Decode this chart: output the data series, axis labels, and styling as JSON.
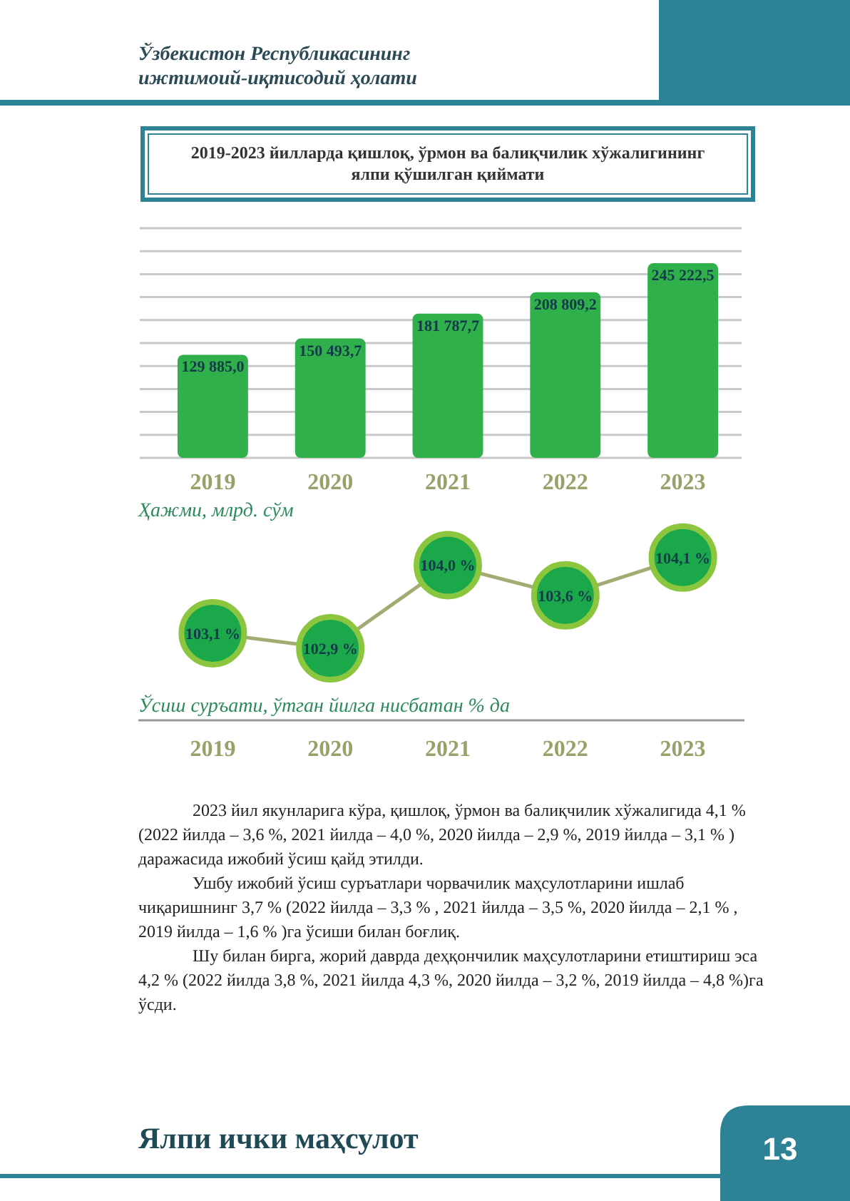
{
  "chart_data": [
    {
      "type": "bar",
      "title": "2019-2023 йилларда қишлоқ, ўрмон ва балиқчилик хўжалигининг ялпи қўшилган қиймати",
      "xlabel": "Ҳажми, млрд. сўм",
      "categories": [
        "2019",
        "2020",
        "2021",
        "2022",
        "2023"
      ],
      "values": [
        129885.0,
        150493.7,
        181787.7,
        208809.2,
        245222.5
      ],
      "value_labels": [
        "129 885,0",
        "150 493,7",
        "181 787,7",
        "208 809,2",
        "245 222,5"
      ],
      "color": "#2fb04a",
      "grid": "y",
      "annotations": [
        "Ўзбекистон Республикасининг",
        "ижтимоий-иқтисодий ҳолати"
      ]
    },
    {
      "type": "line",
      "xlabel": "Ўсиш суръати, ўтган йилга нисбатан % да",
      "categories": [
        "2019",
        "2020",
        "2021",
        "2022",
        "2023"
      ],
      "series": [
        {
          "color": "#a4ab72",
          "values": [
            103.1,
            102.9,
            104.0,
            103.6,
            104.1
          ],
          "value_labels": [
            "103,1 %",
            "102,9 %",
            "104,0 %",
            "103,6 %",
            "104,1 %"
          ]
        }
      ],
      "marker": "circle",
      "annotations": [
        "2023 йил якунларига кўра, қишлоқ, ўрмон ва балиқчилик хўжалигида 4,1 % (2022 йилда – 3,6 %, 2021 йилда – 4,0 %, 2020 йилда – 2,9 %, 2019 йилда – 3,1 % ) даражасида ижобий ўсиш қайд этилди.",
        "Ушбу ижобий ўсиш суръатлари чорвачилик маҳсулотларини ишлаб чиқаришнинг 3,7 % (2022 йилда – 3,3 % , 2021 йилда – 3,5 %, 2020 йилда – 2,1 % , 2019 йилда – 1,6 % )га ўсиши билан боғлиқ.",
        "Шу билан бирга, жорий даврда деҳқончилик маҳсулотларини етиштириш эса 4,2 % (2022 йилда 3,8 %, 2021 йилда 4,3 %, 2020 йилда – 3,2 %, 2019 йилда – 4,8 %)га ўсди.",
        "Ялпи ички маҳсулот",
        "13"
      ]
    }
  ]
}
